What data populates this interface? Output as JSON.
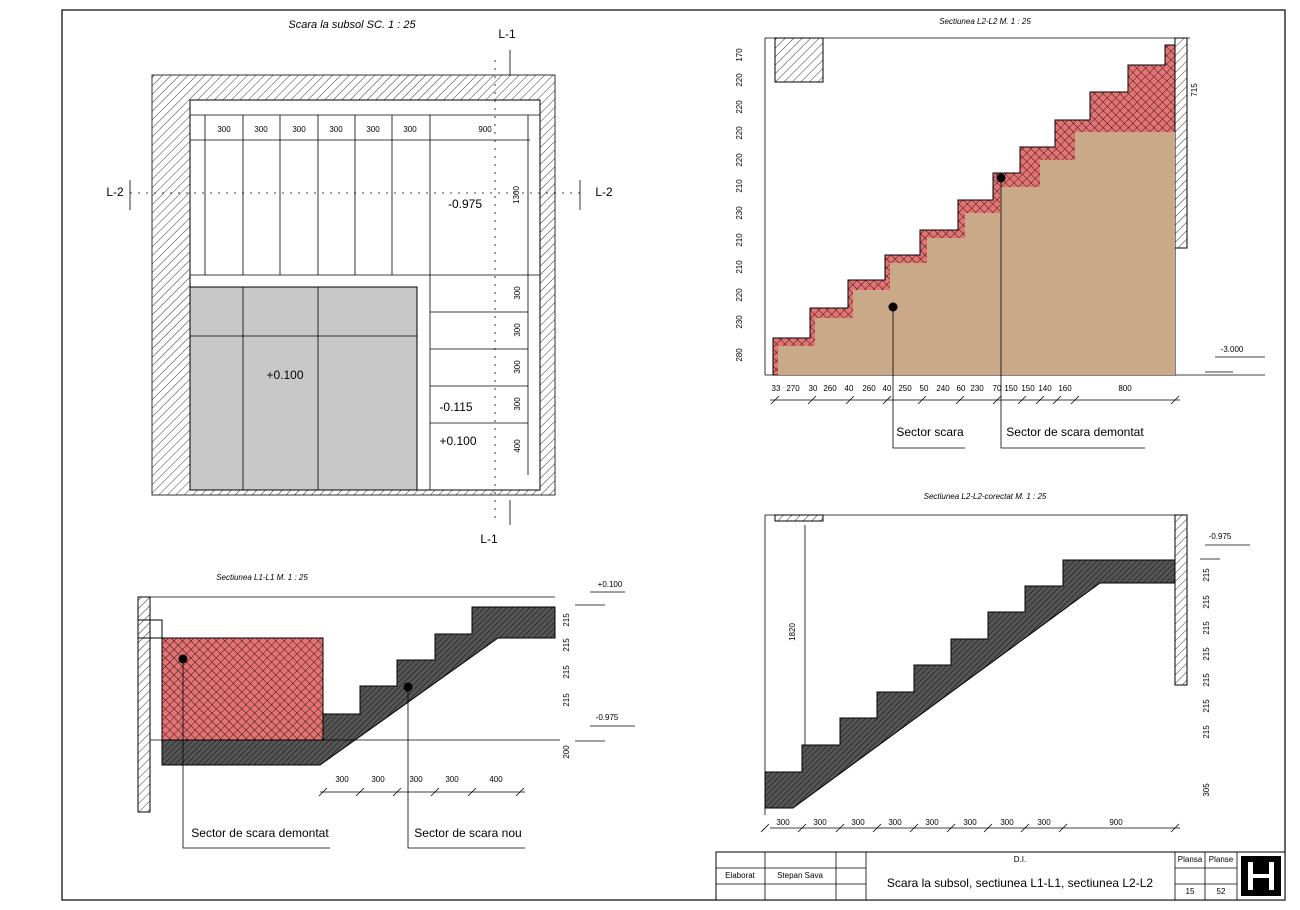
{
  "plan": {
    "title": "Scara la subsol SC. 1 : 25",
    "section_marks": [
      "L-1",
      "L-1",
      "L-2",
      "L-2"
    ],
    "dims_top": [
      300,
      300,
      300,
      300,
      300,
      300,
      900
    ],
    "dim_right": 1300,
    "dims_right": [
      300,
      300,
      300,
      300,
      400
    ],
    "levels": [
      "-0.975",
      "+0.100",
      "-0.115",
      "+0.100"
    ]
  },
  "section_l2": {
    "title": "Sectiunea L2-L2  M. 1 : 25",
    "dims_left": [
      170,
      220,
      220,
      220,
      220,
      210,
      230,
      210,
      210,
      220,
      230,
      280
    ],
    "dim_right": 715,
    "dims_bottom": [
      33,
      270,
      30,
      260,
      40,
      260,
      40,
      250,
      50,
      240,
      60,
      230,
      70,
      150,
      150,
      140,
      160,
      800
    ],
    "level": "-3.000",
    "labels": [
      "Sector scara",
      "Sector de scara demontat"
    ]
  },
  "section_l2c": {
    "title": "Sectiunea L2-L2-corectat  M. 1 : 25",
    "level": "-0.975",
    "dim_left": 1820,
    "dims_right": [
      215,
      215,
      215,
      215,
      215,
      215,
      215,
      305
    ],
    "dims_bottom": [
      300,
      300,
      300,
      300,
      300,
      300,
      300,
      300,
      900
    ]
  },
  "section_l1": {
    "title": "Sectiunea L1-L1  M. 1 : 25",
    "levels": [
      "+0.100",
      "-0.975"
    ],
    "dims_right": [
      215,
      215,
      215,
      215,
      200
    ],
    "dims_bottom": [
      300,
      300,
      300,
      300,
      400
    ],
    "labels": [
      "Sector de scara demontat",
      "Sector de scara nou"
    ]
  },
  "title_block": {
    "project": "D.I.",
    "elaborat": "Elaborat",
    "author": "Stepan Sava",
    "drawing_title": "Scara la subsol, sectiunea L1-L1, sectiunea L2-L2",
    "sheet_label": "Plansa",
    "sheets_label": "Planse",
    "sheet": "15",
    "sheets": "52"
  }
}
